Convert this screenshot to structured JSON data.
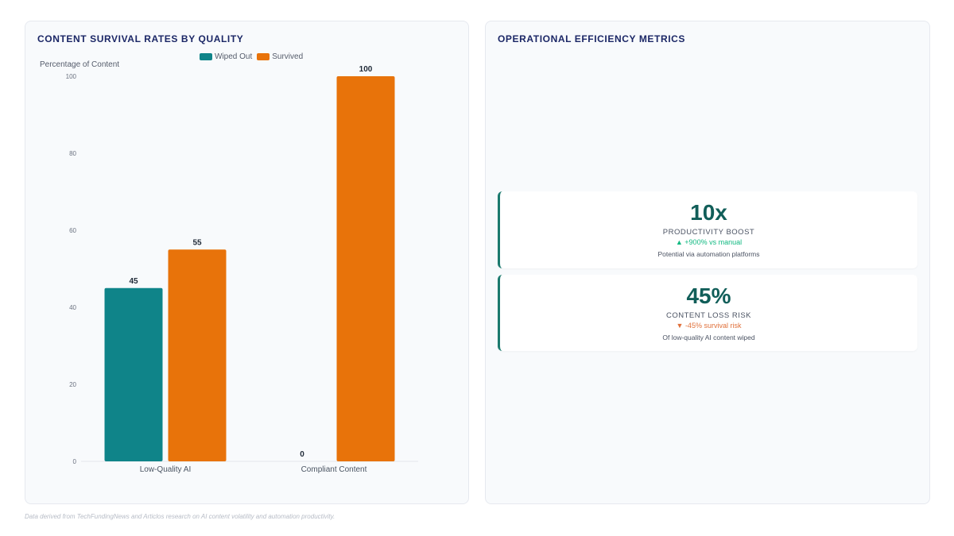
{
  "left_panel": {
    "title": "CONTENT SURVIVAL RATES BY QUALITY"
  },
  "right_panel": {
    "title": "OPERATIONAL EFFICIENCY METRICS",
    "metrics": [
      {
        "value": "10x",
        "label": "PRODUCTIVITY BOOST",
        "change": "▲ +900% vs manual",
        "change_direction": "up",
        "description": "Potential via automation platforms"
      },
      {
        "value": "45%",
        "label": "CONTENT LOSS RISK",
        "change": "▼ -45% survival risk",
        "change_direction": "down",
        "description": "Of low-quality AI content wiped"
      }
    ]
  },
  "footer": "Data derived from TechFundingNews and Articlos research on AI content volatility and automation productivity.",
  "chart_data": {
    "type": "bar",
    "title": "CONTENT SURVIVAL RATES BY QUALITY",
    "ylabel": "Percentage of Content",
    "xlabel": "",
    "categories": [
      "Low-Quality AI",
      "Compliant Content"
    ],
    "series": [
      {
        "name": "Wiped Out",
        "values": [
          45,
          0
        ],
        "color": "#0f8489"
      },
      {
        "name": "Survived",
        "values": [
          55,
          100
        ],
        "color": "#e8730a"
      }
    ],
    "ylim": [
      0,
      100
    ],
    "yticks": [
      0,
      20,
      40,
      60,
      80,
      100
    ],
    "legend": "top-center",
    "grid": false
  }
}
